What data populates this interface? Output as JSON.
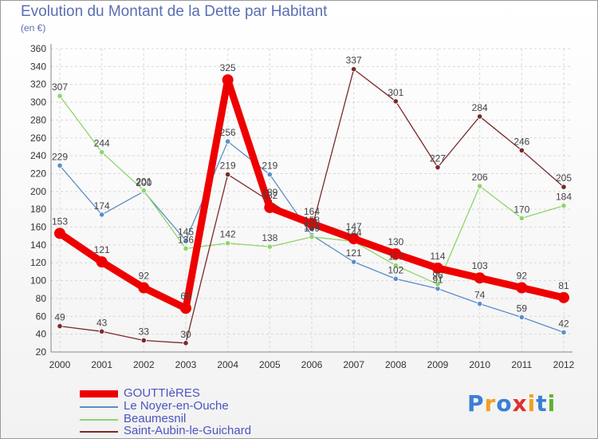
{
  "title": "Evolution du Montant de la Dette par Habitant",
  "subtitle": "(en €)",
  "logo": {
    "text": "Proxiti",
    "letters": [
      "P",
      "r",
      "o",
      "x",
      "i",
      "t",
      "i"
    ],
    "colors": [
      "#3a7fd5",
      "#f0a020",
      "#3a7fd5",
      "#e03030",
      "#f0a020",
      "#3a7fd5",
      "#60b030"
    ]
  },
  "chart_data": {
    "type": "line",
    "x": [
      "2000",
      "2001",
      "2002",
      "2003",
      "2004",
      "2005",
      "2006",
      "2007",
      "2008",
      "2009",
      "2010",
      "2011",
      "2012"
    ],
    "ylim": [
      20,
      360
    ],
    "yticks": [
      20,
      40,
      60,
      80,
      100,
      120,
      140,
      160,
      180,
      200,
      220,
      240,
      260,
      280,
      300,
      320,
      340,
      360
    ],
    "grid": true,
    "legend_position": "bottom-left",
    "series": [
      {
        "name": "GOUTTIèRES",
        "color": "#ee0000",
        "values": [
          153,
          121,
          92,
          69,
          325,
          182,
          164,
          147,
          130,
          114,
          103,
          92,
          81
        ]
      },
      {
        "name": "Le Noyer-en-Ouche",
        "color": "#5b8ec8",
        "values": [
          229,
          174,
          200,
          145,
          256,
          219,
          151,
          121,
          102,
          91,
          74,
          59,
          42
        ]
      },
      {
        "name": "Beaumesnil",
        "color": "#8fd46a",
        "values": [
          307,
          244,
          201,
          136,
          142,
          138,
          149,
          144,
          117,
          96,
          206,
          170,
          184
        ]
      },
      {
        "name": "Saint-Aubin-le-Guichard",
        "color": "#7a2a2a",
        "values": [
          49,
          43,
          33,
          30,
          219,
          189,
          158,
          337,
          301,
          227,
          284,
          246,
          205
        ]
      }
    ],
    "labels": [
      [
        "153",
        "121",
        "92",
        "69",
        "325",
        "182",
        "164",
        "147",
        "130",
        "114",
        "103",
        "92",
        "81"
      ],
      [
        "229",
        "174",
        "200",
        "145",
        "256",
        "219",
        "151",
        "121",
        "102",
        "91",
        "74",
        "59",
        "42"
      ],
      [
        "307",
        "244",
        "201",
        "136",
        "142",
        "138",
        "149",
        "144",
        "117",
        "96",
        "206",
        "170",
        "184"
      ],
      [
        "49",
        "43",
        "33",
        "30",
        "219",
        "189",
        "158",
        "337",
        "301",
        "227",
        "284",
        "246",
        "205"
      ]
    ]
  }
}
